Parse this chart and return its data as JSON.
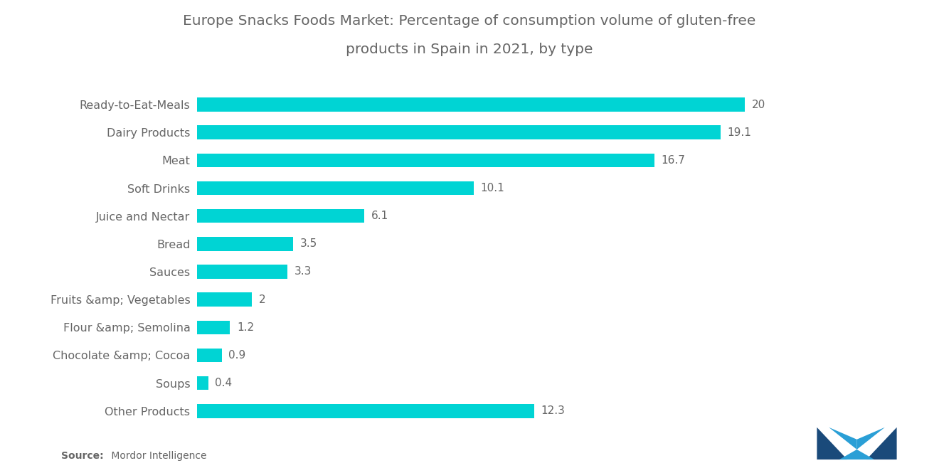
{
  "title_line1": "Europe Snacks Foods Market: Percentage of consumption volume of gluten-free",
  "title_line2": "products in Spain in 2021, by type",
  "categories": [
    "Ready-to-Eat-Meals",
    "Dairy Products",
    "Meat",
    "Soft Drinks",
    "Juice and Nectar",
    "Bread",
    "Sauces",
    "Fruits &amp; Vegetables",
    "Flour &amp; Semolina",
    "Chocolate &amp; Cocoa",
    "Soups",
    "Other Products"
  ],
  "values": [
    20.0,
    19.1,
    16.7,
    10.1,
    6.1,
    3.5,
    3.3,
    2.0,
    1.2,
    0.9,
    0.4,
    12.3
  ],
  "bar_color": "#00D4D4",
  "background_color": "#FFFFFF",
  "title_fontsize": 14.5,
  "label_fontsize": 11.5,
  "value_fontsize": 11,
  "text_color": "#666666",
  "xlim": [
    0,
    24
  ]
}
